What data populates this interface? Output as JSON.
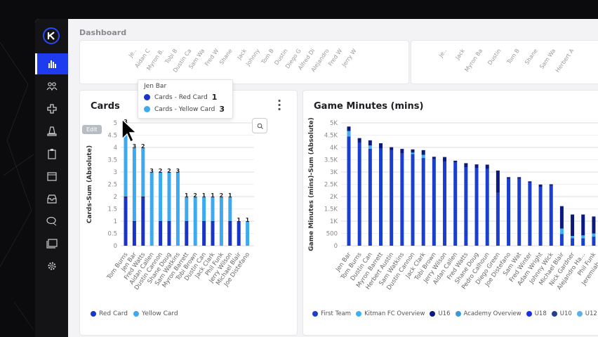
{
  "header": {
    "title": "Dashboard"
  },
  "sidebar": {
    "items": [
      {
        "icon": "bar-chart-icon",
        "active": true
      },
      {
        "icon": "users-icon"
      },
      {
        "icon": "medical-cross-icon"
      },
      {
        "icon": "cone-icon"
      },
      {
        "icon": "clipboard-icon"
      },
      {
        "icon": "calendar-icon"
      },
      {
        "icon": "inbox-icon"
      },
      {
        "icon": "chat-icon"
      },
      {
        "icon": "media-folder-icon"
      },
      {
        "icon": "gear-icon"
      }
    ],
    "accent": "#1f3bf0"
  },
  "top_left_labels": [
    "Je..",
    "Aidan C",
    "Myron B.",
    "Tobi B",
    "Dustin Ca",
    "Sam Wa",
    "Fred W",
    "Shane",
    "Jack",
    "Johnny",
    "Tom B",
    "Dustin",
    "Diego G",
    "Alfred Di",
    "Alejandro",
    "Fred W",
    "Jerry W"
  ],
  "top_right_labels": [
    "Je..",
    "Jack",
    "Myron Ba",
    "Dustin",
    "Tom B",
    "Shane",
    "Sam Wa",
    "Herbert A"
  ],
  "cards": {
    "title": "Cards",
    "edit_label": "Edit",
    "tooltip": {
      "name": "Jen Bar",
      "rows": [
        {
          "label": "Cards   - Red Card",
          "value": "1",
          "color": "#1a34c8"
        },
        {
          "label": "Cards   - Yellow Card",
          "value": "3",
          "color": "#3daaf0"
        }
      ]
    }
  },
  "game_minutes": {
    "title": "Game Minutes (mins)"
  },
  "chart_data": [
    {
      "type": "bar",
      "stacked": true,
      "title": "Cards",
      "xlabel": "",
      "ylabel": "Cards-Sum (Absolute)",
      "ylim": [
        0,
        5
      ],
      "yticks": [
        "0",
        "0.5",
        "1",
        "1.5",
        "2",
        "2.5",
        "3",
        "3.5",
        "4",
        "4.5",
        "5"
      ],
      "grid": true,
      "legend": "bottom-left",
      "categories": [
        "Tom Burns",
        "Jen Bar",
        "Fred Watts",
        "Aidan Callen",
        "Dustin Cannon",
        "Shane Doug",
        "Sam Watkins",
        "Myron Barrett",
        "Tobi Brown",
        "Dustin Can",
        "Jack Clark",
        "Phil Funk",
        "Jerry Wilson",
        "Michael Blair",
        "Joe Distefano"
      ],
      "series": [
        {
          "name": "Red Card",
          "color": "#1a34c8",
          "values": [
            2,
            1,
            2,
            0,
            1,
            1,
            0,
            1,
            0,
            1,
            1,
            0,
            1,
            1,
            0
          ]
        },
        {
          "name": "Yellow Card",
          "color": "#3daaf0",
          "values": [
            3,
            3,
            2,
            3,
            2,
            2,
            3,
            1,
            2,
            1,
            1,
            2,
            1,
            0,
            1
          ]
        }
      ]
    },
    {
      "type": "bar",
      "stacked": true,
      "title": "Game Minutes (mins)",
      "xlabel": "",
      "ylabel": "Game Minutes (mins)-Sum (Absolute)",
      "ylim": [
        0,
        5000
      ],
      "yticks": [
        "0",
        "500",
        "1K",
        "1.5K",
        "2K",
        "2.5K",
        "3K",
        "3.5K",
        "4K",
        "4.5K",
        "5K"
      ],
      "grid": true,
      "legend": "bottom",
      "categories": [
        "Jen Bar",
        "Tom Burns",
        "Dustin Can",
        "Myron Barrett",
        "Herbert Austin",
        "Sam Watkins",
        "Dustin Cannon",
        "Jack Clark",
        "Tobi Brown",
        "Jerry Wilson",
        "Aidan Callen",
        "Fred Watts",
        "Shane Doug",
        "Pedro Calhoun",
        "Diego Green",
        "Joe Distefano",
        "Sam Wat",
        "Fred Winter",
        "Adam Wright",
        "Johnny Wick",
        "Michael Blair",
        "Nick Gardner",
        "Alejandro Ha...",
        "Phil Funk",
        "Jeremiah C..."
      ],
      "legend_entries": [
        "First Team",
        "Kitman FC Overview",
        "U16",
        "Academy Overview",
        "U18",
        "U10",
        "U12"
      ],
      "legend_colors": [
        "#1a3fd0",
        "#3fb0f0",
        "#0b1a80",
        "#3a9ad8",
        "#1a2ee8",
        "#22408a",
        "#5ab0e8"
      ],
      "series": [
        {
          "name": "First Team",
          "color": "#1a3fd0",
          "values": [
            4450,
            4200,
            3950,
            3950,
            3900,
            3750,
            3730,
            3570,
            3520,
            3430,
            3400,
            3200,
            3150,
            3130,
            2150,
            2720,
            2720,
            2570,
            2400,
            2440,
            480,
            300,
            300,
            370,
            null
          ]
        },
        {
          "name": "Kitman FC Overview",
          "color": "#3fb0f0",
          "values": [
            220,
            0,
            130,
            0,
            0,
            0,
            60,
            130,
            0,
            0,
            0,
            0,
            0,
            0,
            0,
            0,
            0,
            0,
            0,
            0,
            220,
            100,
            120,
            130,
            null
          ]
        },
        {
          "name": "U16",
          "color": "#0b1a80",
          "values": [
            180,
            180,
            210,
            220,
            110,
            190,
            130,
            190,
            100,
            180,
            60,
            160,
            160,
            170,
            910,
            70,
            70,
            50,
            90,
            60,
            910,
            870,
            850,
            690,
            null
          ]
        }
      ]
    }
  ]
}
